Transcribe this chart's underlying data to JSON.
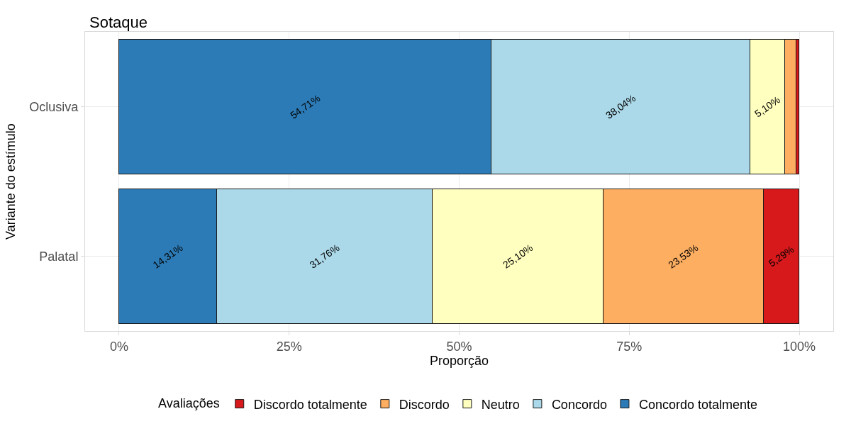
{
  "chart_data": {
    "type": "bar",
    "title": "Sotaque",
    "xlabel": "Proporção",
    "ylabel": "Variante do estímulo",
    "legend_title": "Avaliações",
    "orientation": "horizontal",
    "stacked": true,
    "categories": [
      "Oclusiva",
      "Palatal"
    ],
    "series": [
      {
        "name": "Concordo totalmente",
        "color": "#2c7bb6",
        "values": [
          0.5471,
          0.1431
        ],
        "value_labels": [
          "54,71%",
          "14,31%"
        ]
      },
      {
        "name": "Concordo",
        "color": "#abd9e9",
        "values": [
          0.3804,
          0.3176
        ],
        "value_labels": [
          "38,04%",
          "31,76%"
        ]
      },
      {
        "name": "Neutro",
        "color": "#ffffbf",
        "values": [
          0.051,
          0.251
        ],
        "value_labels": [
          "5,10%",
          "25,10%"
        ]
      },
      {
        "name": "Discordo",
        "color": "#fdae61",
        "values": [
          0.017,
          0.2353
        ],
        "value_labels": [
          null,
          "23,53%"
        ]
      },
      {
        "name": "Discordo totalmente",
        "color": "#d7191c",
        "values": [
          0.004,
          0.0529
        ],
        "value_labels": [
          null,
          "5,29%"
        ]
      }
    ],
    "xlim": [
      -0.05,
      1.05
    ],
    "xticks": [
      {
        "value": 0,
        "label": "0%"
      },
      {
        "value": 0.25,
        "label": "25%"
      },
      {
        "value": 0.5,
        "label": "50%"
      },
      {
        "value": 0.75,
        "label": "75%"
      },
      {
        "value": 1,
        "label": "100%"
      }
    ],
    "grid": true,
    "legend": "bottom"
  }
}
